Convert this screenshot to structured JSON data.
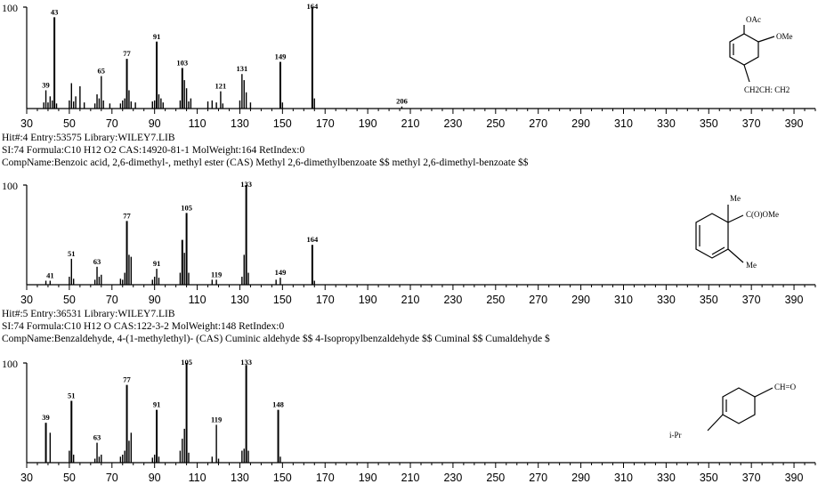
{
  "axis_ticks": [
    "30",
    "50",
    "70",
    "90",
    "110",
    "130",
    "150",
    "170",
    "190",
    "210",
    "230",
    "250",
    "270",
    "290",
    "310",
    "330",
    "350",
    "370",
    "390"
  ],
  "y_top_label": "100",
  "hits": [
    {
      "hit_line": null,
      "si_line": null,
      "compname_line": null,
      "structure_labels": [
        "OAc",
        "OMe",
        "CH2CH: CH2"
      ]
    },
    {
      "hit_line": "Hit#:4  Entry:53575  Library:WILEY7.LIB",
      "si_line": "SI:74  Formula:C10 H12 O2  CAS:14920-81-1  MolWeight:164  RetIndex:0",
      "compname_line": "CompName:Benzoic acid, 2,6-dimethyl-, methyl ester (CAS) Methyl 2,6-dimethylbenzoate $$ methyl 2,6-dimethyl-benzoate $$",
      "structure_labels": [
        "Me",
        "C(O)OMe",
        "Me"
      ]
    },
    {
      "hit_line": "Hit#:5  Entry:36531  Library:WILEY7.LIB",
      "si_line": "SI:74  Formula:C10 H12 O  CAS:122-3-2  MolWeight:148  RetIndex:0",
      "compname_line": "CompName:Benzaldehyde, 4-(1-methylethyl)- (CAS) Cuminic aldehyde $$ 4-Isopropylbenzaldehyde $$ Cuminal $$ Cumaldehyde $",
      "structure_labels": [
        "CH=O",
        "i-Pr"
      ]
    }
  ],
  "chart_data": [
    {
      "type": "bar",
      "title": "",
      "xlabel": "m/z",
      "ylabel": "",
      "xlim": [
        30,
        400
      ],
      "ylim": [
        0,
        100
      ],
      "peaks": [
        [
          38,
          6
        ],
        [
          39,
          18
        ],
        [
          40,
          6
        ],
        [
          41,
          12
        ],
        [
          42,
          8
        ],
        [
          43,
          90
        ],
        [
          44,
          5
        ],
        [
          50,
          8
        ],
        [
          51,
          25
        ],
        [
          52,
          7
        ],
        [
          53,
          12
        ],
        [
          55,
          22
        ],
        [
          57,
          6
        ],
        [
          62,
          5
        ],
        [
          63,
          14
        ],
        [
          64,
          10
        ],
        [
          65,
          32
        ],
        [
          66,
          8
        ],
        [
          69,
          5
        ],
        [
          74,
          5
        ],
        [
          75,
          8
        ],
        [
          76,
          10
        ],
        [
          77,
          49
        ],
        [
          78,
          18
        ],
        [
          79,
          7
        ],
        [
          81,
          6
        ],
        [
          89,
          7
        ],
        [
          90,
          8
        ],
        [
          91,
          66
        ],
        [
          92,
          14
        ],
        [
          93,
          10
        ],
        [
          94,
          6
        ],
        [
          102,
          8
        ],
        [
          103,
          40
        ],
        [
          104,
          28
        ],
        [
          105,
          20
        ],
        [
          106,
          7
        ],
        [
          107,
          10
        ],
        [
          115,
          7
        ],
        [
          117,
          8
        ],
        [
          119,
          6
        ],
        [
          121,
          17
        ],
        [
          122,
          5
        ],
        [
          130,
          8
        ],
        [
          131,
          34
        ],
        [
          132,
          28
        ],
        [
          133,
          16
        ],
        [
          135,
          6
        ],
        [
          149,
          46
        ],
        [
          150,
          6
        ],
        [
          164,
          100
        ],
        [
          165,
          10
        ],
        [
          206,
          2
        ]
      ],
      "peak_labels": [
        {
          "x": 39,
          "y": 18,
          "text": "39"
        },
        {
          "x": 43,
          "y": 90,
          "text": "43"
        },
        {
          "x": 65,
          "y": 32,
          "text": "65"
        },
        {
          "x": 77,
          "y": 49,
          "text": "77"
        },
        {
          "x": 91,
          "y": 66,
          "text": "91"
        },
        {
          "x": 103,
          "y": 40,
          "text": "103"
        },
        {
          "x": 121,
          "y": 17,
          "text": "121"
        },
        {
          "x": 131,
          "y": 34,
          "text": "131"
        },
        {
          "x": 149,
          "y": 46,
          "text": "149"
        },
        {
          "x": 164,
          "y": 100,
          "text": "164"
        },
        {
          "x": 206,
          "y": 2,
          "text": "206"
        }
      ]
    },
    {
      "type": "bar",
      "title": "",
      "xlabel": "m/z",
      "ylabel": "",
      "xlim": [
        30,
        400
      ],
      "ylim": [
        0,
        100
      ],
      "peaks": [
        [
          39,
          4
        ],
        [
          41,
          4
        ],
        [
          50,
          8
        ],
        [
          51,
          26
        ],
        [
          52,
          6
        ],
        [
          62,
          5
        ],
        [
          63,
          18
        ],
        [
          64,
          8
        ],
        [
          65,
          10
        ],
        [
          74,
          6
        ],
        [
          75,
          5
        ],
        [
          76,
          12
        ],
        [
          77,
          64
        ],
        [
          78,
          30
        ],
        [
          79,
          28
        ],
        [
          89,
          5
        ],
        [
          90,
          8
        ],
        [
          91,
          16
        ],
        [
          92,
          7
        ],
        [
          102,
          12
        ],
        [
          103,
          45
        ],
        [
          104,
          32
        ],
        [
          105,
          72
        ],
        [
          106,
          12
        ],
        [
          117,
          5
        ],
        [
          119,
          5
        ],
        [
          131,
          8
        ],
        [
          132,
          30
        ],
        [
          133,
          100
        ],
        [
          134,
          12
        ],
        [
          147,
          5
        ],
        [
          149,
          7
        ],
        [
          164,
          40
        ],
        [
          165,
          4
        ]
      ],
      "peak_labels": [
        {
          "x": 41,
          "y": 4,
          "text": "41"
        },
        {
          "x": 51,
          "y": 26,
          "text": "51"
        },
        {
          "x": 63,
          "y": 18,
          "text": "63"
        },
        {
          "x": 77,
          "y": 64,
          "text": "77"
        },
        {
          "x": 91,
          "y": 16,
          "text": "91"
        },
        {
          "x": 105,
          "y": 72,
          "text": "105"
        },
        {
          "x": 119,
          "y": 5,
          "text": "119"
        },
        {
          "x": 133,
          "y": 100,
          "text": "133"
        },
        {
          "x": 149,
          "y": 7,
          "text": "149"
        },
        {
          "x": 164,
          "y": 40,
          "text": "164"
        }
      ]
    },
    {
      "type": "bar",
      "title": "",
      "xlabel": "m/z",
      "ylabel": "",
      "xlim": [
        30,
        400
      ],
      "ylim": [
        0,
        100
      ],
      "peaks": [
        [
          39,
          40
        ],
        [
          41,
          30
        ],
        [
          50,
          12
        ],
        [
          51,
          62
        ],
        [
          52,
          8
        ],
        [
          62,
          4
        ],
        [
          63,
          20
        ],
        [
          64,
          6
        ],
        [
          65,
          8
        ],
        [
          74,
          6
        ],
        [
          75,
          8
        ],
        [
          76,
          12
        ],
        [
          77,
          78
        ],
        [
          78,
          22
        ],
        [
          79,
          30
        ],
        [
          89,
          5
        ],
        [
          90,
          8
        ],
        [
          91,
          53
        ],
        [
          92,
          6
        ],
        [
          102,
          12
        ],
        [
          103,
          24
        ],
        [
          104,
          34
        ],
        [
          105,
          100
        ],
        [
          106,
          10
        ],
        [
          117,
          6
        ],
        [
          119,
          38
        ],
        [
          120,
          4
        ],
        [
          131,
          12
        ],
        [
          132,
          14
        ],
        [
          133,
          98
        ],
        [
          134,
          12
        ],
        [
          148,
          53
        ],
        [
          149,
          6
        ]
      ],
      "peak_labels": [
        {
          "x": 39,
          "y": 40,
          "text": "39"
        },
        {
          "x": 51,
          "y": 62,
          "text": "51"
        },
        {
          "x": 63,
          "y": 20,
          "text": "63"
        },
        {
          "x": 77,
          "y": 78,
          "text": "77"
        },
        {
          "x": 91,
          "y": 53,
          "text": "91"
        },
        {
          "x": 105,
          "y": 100,
          "text": "105"
        },
        {
          "x": 119,
          "y": 38,
          "text": "119"
        },
        {
          "x": 133,
          "y": 98,
          "text": "133"
        },
        {
          "x": 148,
          "y": 53,
          "text": "148"
        }
      ]
    }
  ]
}
